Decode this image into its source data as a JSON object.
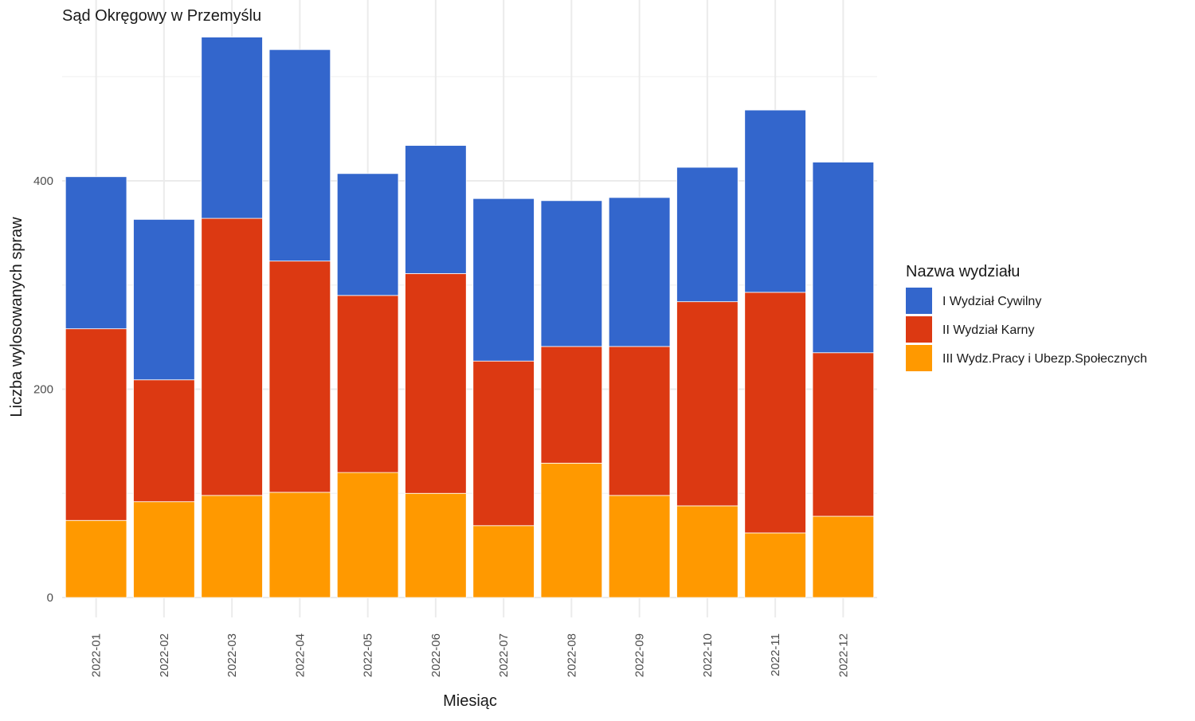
{
  "chart_data": {
    "type": "bar",
    "stacked": true,
    "title": "Sąd Okręgowy w Przemyślu",
    "xlabel": "Miesiąc",
    "ylabel": "Liczba wylosowanych spraw",
    "ylim": [
      0,
      540
    ],
    "yticks": [
      0,
      200,
      400
    ],
    "grid": true,
    "legend_title": "Nazwa wydziału",
    "legend_position": "right",
    "categories": [
      "2022-01",
      "2022-02",
      "2022-03",
      "2022-04",
      "2022-05",
      "2022-06",
      "2022-07",
      "2022-08",
      "2022-09",
      "2022-10",
      "2022-11",
      "2022-12"
    ],
    "series": [
      {
        "name": "III Wydz.Pracy i Ubezp.Społecznych",
        "color": "#ff9900",
        "values": [
          74,
          92,
          98,
          101,
          120,
          100,
          69,
          129,
          98,
          88,
          62,
          78
        ]
      },
      {
        "name": "II Wydział Karny",
        "color": "#dc3912",
        "values": [
          184,
          117,
          266,
          222,
          170,
          211,
          158,
          112,
          143,
          196,
          231,
          157
        ]
      },
      {
        "name": "I Wydział Cywilny",
        "color": "#3366cc",
        "values": [
          146,
          154,
          174,
          203,
          117,
          123,
          156,
          140,
          143,
          129,
          175,
          183
        ]
      }
    ]
  }
}
